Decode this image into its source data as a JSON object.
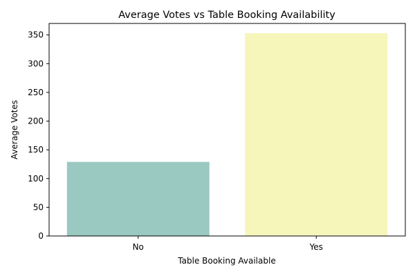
{
  "chart_data": {
    "type": "bar",
    "title": "Average Votes vs Table Booking Availability",
    "xlabel": "Table Booking Available",
    "ylabel": "Average Votes",
    "categories": [
      "No",
      "Yes"
    ],
    "values": [
      129,
      353
    ],
    "colors": [
      "#99c9c0",
      "#f6f6bb"
    ],
    "ylim": [
      0,
      370
    ],
    "yticks": [
      0,
      50,
      100,
      150,
      200,
      250,
      300,
      350
    ],
    "grid": false,
    "legend": "none"
  }
}
